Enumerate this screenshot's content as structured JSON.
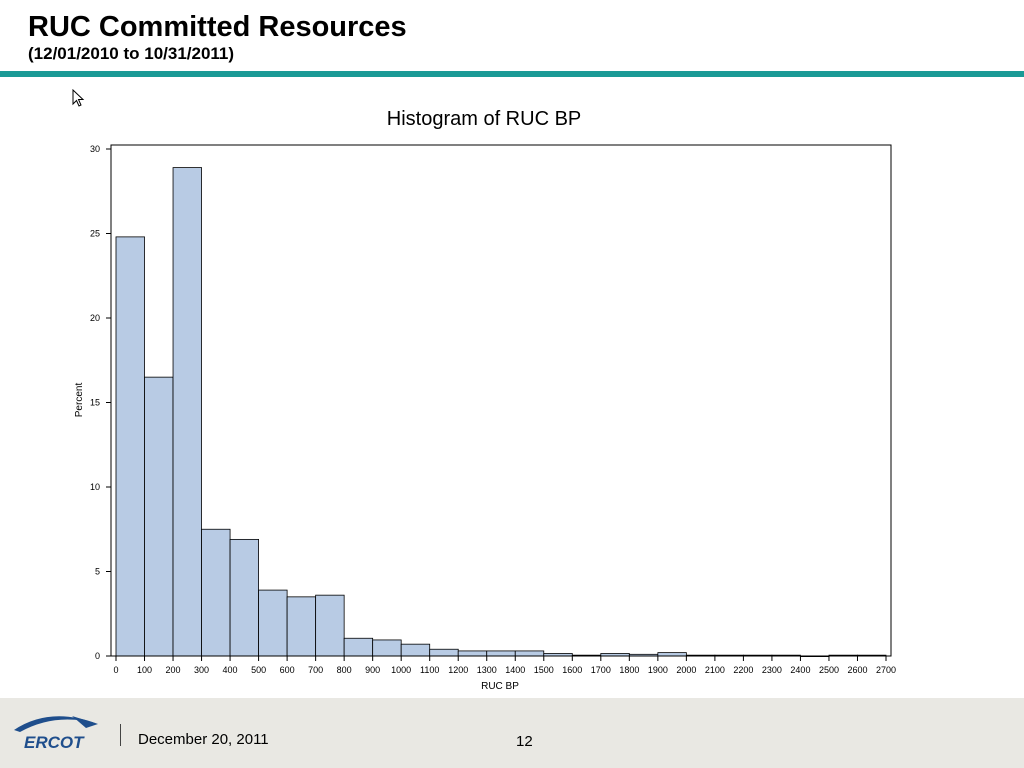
{
  "slide": {
    "title": "RUC Committed Resources",
    "subtitle": "(12/01/2010 to 10/31/2011)"
  },
  "footer": {
    "logo_text": "ERCOT",
    "date": "December 20, 2011",
    "page_number": "12"
  },
  "colors": {
    "title_rule": "#1a9a96",
    "bar_fill": "#b8cbe4",
    "bar_stroke": "#000000",
    "logo_blue": "#1f4e8c"
  },
  "chart_data": {
    "type": "bar",
    "title": "Histogram of RUC BP",
    "xlabel": "RUC BP",
    "ylabel": "Percent",
    "ylim": [
      0,
      30
    ],
    "yticks": [
      0,
      5,
      10,
      15,
      20,
      25,
      30
    ],
    "xlim": [
      0,
      2700
    ],
    "xticks": [
      0,
      100,
      200,
      300,
      400,
      500,
      600,
      700,
      800,
      900,
      1000,
      1100,
      1200,
      1300,
      1400,
      1500,
      1600,
      1700,
      1800,
      1900,
      2000,
      2100,
      2200,
      2300,
      2400,
      2500,
      2600,
      2700
    ],
    "bin_width": 100,
    "bin_starts": [
      0,
      100,
      200,
      300,
      400,
      500,
      600,
      700,
      800,
      900,
      1000,
      1100,
      1200,
      1300,
      1400,
      1500,
      1600,
      1700,
      1800,
      1900,
      2000,
      2100,
      2200,
      2300,
      2400,
      2500,
      2600
    ],
    "values": [
      24.8,
      16.5,
      28.9,
      7.5,
      6.9,
      3.9,
      3.5,
      3.6,
      1.05,
      0.95,
      0.7,
      0.4,
      0.3,
      0.3,
      0.3,
      0.15,
      0.05,
      0.15,
      0.1,
      0.2,
      0.05,
      0.05,
      0.05,
      0.05,
      0.0,
      0.05,
      0.05
    ],
    "grid": false
  }
}
